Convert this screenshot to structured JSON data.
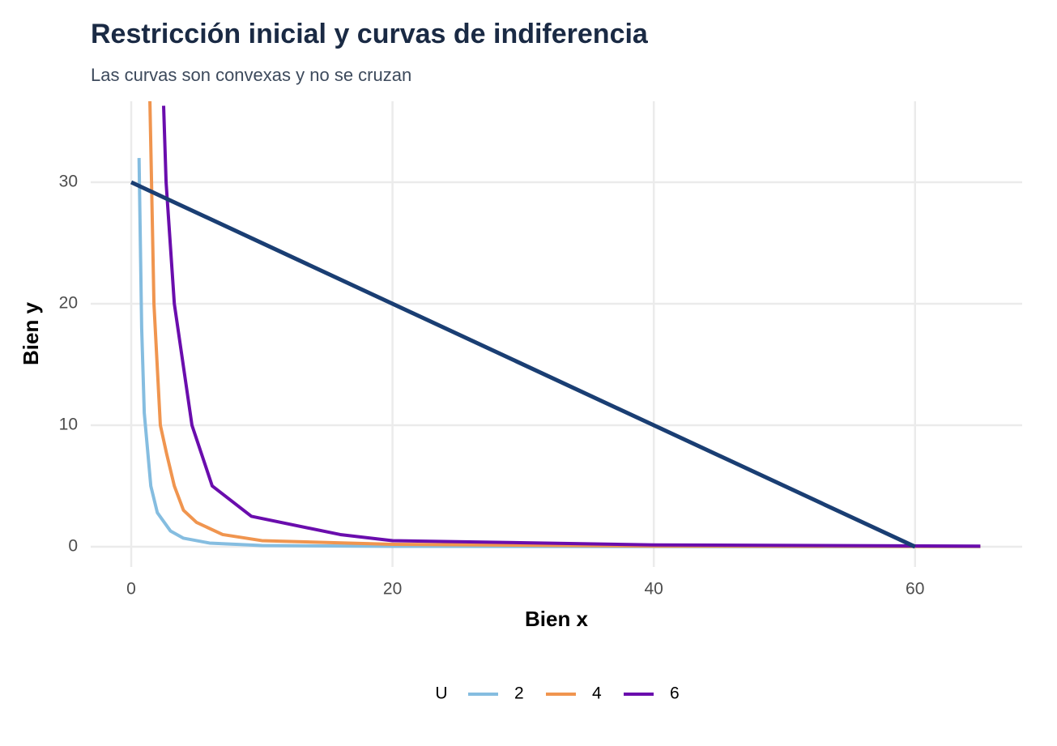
{
  "chart_data": {
    "type": "line",
    "title": "Restricción inicial y curvas de indiferencia",
    "subtitle": "Las curvas son convexas y no se cruzan",
    "x_label": "Bien x",
    "y_label": "Bien y",
    "legend_title": "U",
    "legend_position": "bottom",
    "grid": true,
    "xlim": [
      -3.1,
      68.2
    ],
    "ylim": [
      -1.67,
      36.67
    ],
    "xticks": [
      0,
      20,
      40,
      60
    ],
    "yticks": [
      0,
      10,
      20,
      30
    ],
    "series": [
      {
        "name": "2",
        "color": "#85bde0",
        "x": [
          0.6,
          0.8,
          1,
          1.5,
          2,
          3,
          4,
          6,
          10,
          20,
          40,
          65
        ],
        "values": [
          32,
          18,
          11,
          5,
          2.8,
          1.3,
          0.7,
          0.3,
          0.1,
          0.03,
          0.01,
          0.004
        ]
      },
      {
        "name": "4",
        "color": "#f0954f",
        "x": [
          1.43,
          1.5,
          1.74,
          2.23,
          2.7,
          3.3,
          4,
          5,
          7,
          10,
          20,
          40,
          65
        ],
        "values": [
          36.7,
          33,
          20,
          10,
          7.7,
          5,
          3,
          2,
          1,
          0.5,
          0.2,
          0.05,
          0.02
        ]
      },
      {
        "name": "6",
        "color": "#6a0dad",
        "x": [
          2.48,
          2.67,
          3.3,
          4.65,
          6.2,
          9.2,
          16,
          20,
          40,
          65
        ],
        "values": [
          36.3,
          30,
          20,
          10,
          5,
          2.5,
          1,
          0.5,
          0.15,
          0.05
        ]
      }
    ],
    "budget_line": {
      "color": "#1a3e73",
      "x": [
        0,
        60
      ],
      "values": [
        30,
        0
      ]
    }
  }
}
